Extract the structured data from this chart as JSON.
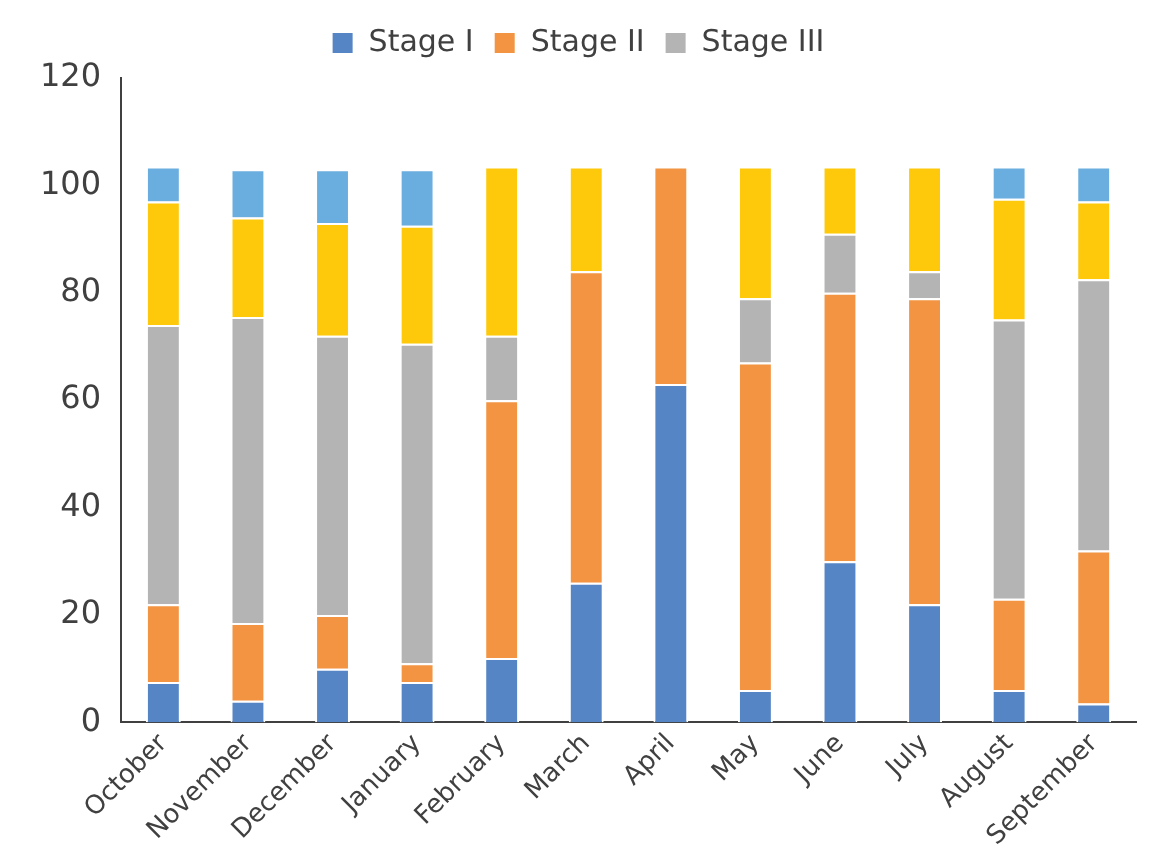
{
  "chart_data": {
    "type": "bar",
    "stacked": true,
    "categories": [
      "October",
      "November",
      "December",
      "January",
      "February",
      "March",
      "April",
      "May",
      "June",
      "July",
      "August",
      "September"
    ],
    "series": [
      {
        "name": "Stage I",
        "color": "#5585c5",
        "values": [
          7.5,
          4,
          10,
          7.5,
          12,
          26,
          63,
          6,
          30,
          22,
          6,
          3.5
        ]
      },
      {
        "name": "Stage II",
        "color": "#f29441",
        "values": [
          14.5,
          14.5,
          10,
          3.5,
          48,
          58,
          40.5,
          61,
          50,
          57,
          17,
          28.5
        ]
      },
      {
        "name": "Stage III",
        "color": "#b4b4b4",
        "values": [
          52,
          57,
          52,
          59.5,
          12,
          0,
          0,
          12,
          11,
          5,
          52,
          50.5
        ]
      },
      {
        "color": "#fdc90a",
        "values": [
          23,
          18.5,
          21,
          22,
          31.5,
          19.5,
          0,
          24.5,
          12.5,
          19.5,
          22.5,
          14.5
        ]
      },
      {
        "color": "#6aaddf",
        "values": [
          6.5,
          9,
          10,
          10.5,
          0,
          0,
          0,
          0,
          0,
          0,
          6,
          6.5
        ]
      }
    ],
    "ylim": [
      0,
      120
    ],
    "yticks": [
      0,
      20,
      40,
      60,
      80,
      100,
      120
    ],
    "grid": false,
    "legend": "top"
  }
}
